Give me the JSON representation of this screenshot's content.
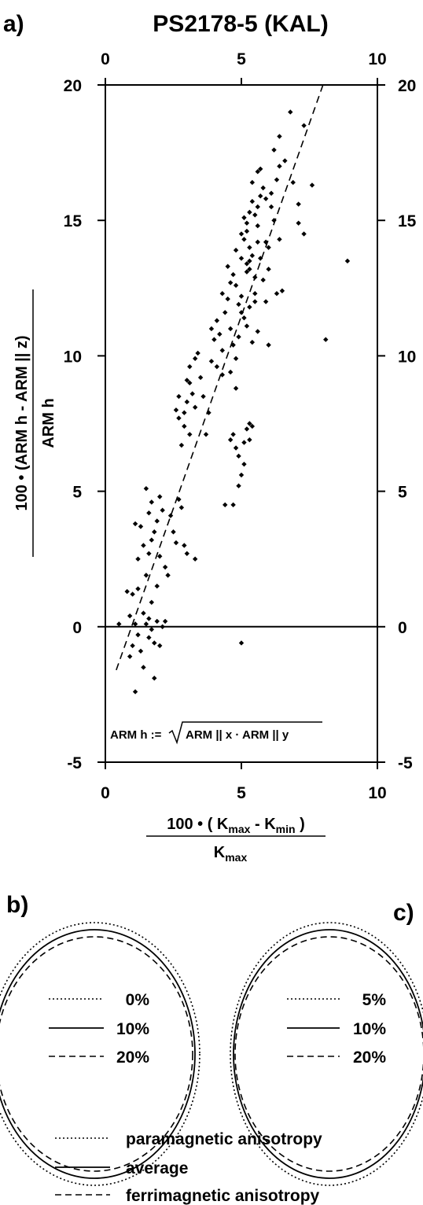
{
  "panels": {
    "a": "a)",
    "b": "b)",
    "c": "c)"
  },
  "chart_data": {
    "type": "scatter",
    "title": "PS2178-5 (KAL)",
    "xlim": [
      0,
      10
    ],
    "ylim": [
      -5,
      20
    ],
    "xticks": [
      "0",
      "5",
      "10"
    ],
    "yticks": [
      "-5",
      "0",
      "5",
      "10",
      "15",
      "20"
    ],
    "xlabel": {
      "numerator_prefix": "100 • ( K",
      "sub_max": "max",
      "minus": " - K",
      "sub_min": "min",
      "close": " )",
      "denominator": "K",
      "denominator_sub": "max"
    },
    "ylabel": {
      "numerator": "100 • (ARM h - ARM || z)",
      "denominator": "ARM h"
    },
    "annotation": {
      "left": "ARM h := ",
      "radicand": "ARM || x · ARM || y"
    },
    "zero_line": 0,
    "fit_line": {
      "x": [
        0.4,
        8.0
      ],
      "y": [
        -1.6,
        20.0
      ],
      "style": "dashed"
    },
    "points": [
      [
        0.5,
        0.1
      ],
      [
        0.8,
        1.3
      ],
      [
        0.9,
        -1.1
      ],
      [
        1.0,
        -0.7
      ],
      [
        0.9,
        0.4
      ],
      [
        1.1,
        0.1
      ],
      [
        1.2,
        -0.3
      ],
      [
        1.0,
        1.2
      ],
      [
        1.2,
        1.4
      ],
      [
        1.3,
        -0.9
      ],
      [
        1.4,
        0.5
      ],
      [
        1.5,
        0.1
      ],
      [
        1.1,
        -2.4
      ],
      [
        1.4,
        -1.5
      ],
      [
        1.6,
        -0.4
      ],
      [
        1.6,
        0.3
      ],
      [
        1.7,
        0.9
      ],
      [
        1.8,
        -0.6
      ],
      [
        1.9,
        0.2
      ],
      [
        1.8,
        -1.9
      ],
      [
        1.5,
        1.9
      ],
      [
        1.6,
        2.7
      ],
      [
        1.7,
        3.2
      ],
      [
        1.8,
        3.5
      ],
      [
        1.6,
        4.2
      ],
      [
        1.5,
        5.1
      ],
      [
        1.7,
        4.6
      ],
      [
        1.9,
        3.9
      ],
      [
        2.0,
        4.8
      ],
      [
        2.1,
        4.3
      ],
      [
        2.0,
        2.6
      ],
      [
        2.2,
        2.2
      ],
      [
        2.3,
        1.9
      ],
      [
        2.2,
        0.2
      ],
      [
        2.1,
        0.0
      ],
      [
        1.9,
        1.5
      ],
      [
        1.7,
        -0.1
      ],
      [
        2.0,
        -0.7
      ],
      [
        1.1,
        3.8
      ],
      [
        1.3,
        3.7
      ],
      [
        1.4,
        3.0
      ],
      [
        1.2,
        2.5
      ],
      [
        2.4,
        4.1
      ],
      [
        2.5,
        3.5
      ],
      [
        2.6,
        3.1
      ],
      [
        2.7,
        4.7
      ],
      [
        2.8,
        4.4
      ],
      [
        2.9,
        3.0
      ],
      [
        3.0,
        2.7
      ],
      [
        3.3,
        2.5
      ],
      [
        2.6,
        8.0
      ],
      [
        2.7,
        7.7
      ],
      [
        2.8,
        6.7
      ],
      [
        2.9,
        7.4
      ],
      [
        3.0,
        8.3
      ],
      [
        3.1,
        9.0
      ],
      [
        3.2,
        8.6
      ],
      [
        3.3,
        8.1
      ],
      [
        3.1,
        9.6
      ],
      [
        3.3,
        9.9
      ],
      [
        3.4,
        10.1
      ],
      [
        3.5,
        9.2
      ],
      [
        3.6,
        8.5
      ],
      [
        3.7,
        7.1
      ],
      [
        3.8,
        7.9
      ],
      [
        3.9,
        9.8
      ],
      [
        4.0,
        10.6
      ],
      [
        4.1,
        11.3
      ],
      [
        4.2,
        10.8
      ],
      [
        4.3,
        9.3
      ],
      [
        4.3,
        12.3
      ],
      [
        4.4,
        11.6
      ],
      [
        4.5,
        12.1
      ],
      [
        4.6,
        11.0
      ],
      [
        4.7,
        10.4
      ],
      [
        4.8,
        9.9
      ],
      [
        4.9,
        10.7
      ],
      [
        4.6,
        12.7
      ],
      [
        4.7,
        13.0
      ],
      [
        4.8,
        12.6
      ],
      [
        4.9,
        11.9
      ],
      [
        5.0,
        12.2
      ],
      [
        5.1,
        11.4
      ],
      [
        5.2,
        13.4
      ],
      [
        5.0,
        13.6
      ],
      [
        5.1,
        14.3
      ],
      [
        5.2,
        14.6
      ],
      [
        5.3,
        13.2
      ],
      [
        5.4,
        13.7
      ],
      [
        5.5,
        12.9
      ],
      [
        5.1,
        15.1
      ],
      [
        5.3,
        15.3
      ],
      [
        5.4,
        15.7
      ],
      [
        5.5,
        15.2
      ],
      [
        5.6,
        14.8
      ],
      [
        5.7,
        15.9
      ],
      [
        5.8,
        16.2
      ],
      [
        5.4,
        16.4
      ],
      [
        5.6,
        16.8
      ],
      [
        5.9,
        14.2
      ],
      [
        6.0,
        14.0
      ],
      [
        6.1,
        15.5
      ],
      [
        6.2,
        15.0
      ],
      [
        6.3,
        16.5
      ],
      [
        6.4,
        17.0
      ],
      [
        6.2,
        17.6
      ],
      [
        6.4,
        18.1
      ],
      [
        6.6,
        17.2
      ],
      [
        6.8,
        19.0
      ],
      [
        6.9,
        16.4
      ],
      [
        7.1,
        15.6
      ],
      [
        7.3,
        18.5
      ],
      [
        7.1,
        14.9
      ],
      [
        7.3,
        14.5
      ],
      [
        7.6,
        16.3
      ],
      [
        6.4,
        14.3
      ],
      [
        6.0,
        13.2
      ],
      [
        5.9,
        12.0
      ],
      [
        6.3,
        12.3
      ],
      [
        6.5,
        12.4
      ],
      [
        5.5,
        12.3
      ],
      [
        5.3,
        11.8
      ],
      [
        5.4,
        10.5
      ],
      [
        5.2,
        11.1
      ],
      [
        5.5,
        12.0
      ],
      [
        5.0,
        11.6
      ],
      [
        5.2,
        13.1
      ],
      [
        5.3,
        13.5
      ],
      [
        5.3,
        14.0
      ],
      [
        5.6,
        14.2
      ],
      [
        5.7,
        13.6
      ],
      [
        5.8,
        12.8
      ],
      [
        6.0,
        10.4
      ],
      [
        5.6,
        10.9
      ],
      [
        4.6,
        9.4
      ],
      [
        4.8,
        8.8
      ],
      [
        4.6,
        6.9
      ],
      [
        4.9,
        6.3
      ],
      [
        5.1,
        6.8
      ],
      [
        5.2,
        7.3
      ],
      [
        5.3,
        7.5
      ],
      [
        5.4,
        7.4
      ],
      [
        5.3,
        6.9
      ],
      [
        5.0,
        5.6
      ],
      [
        5.1,
        6.0
      ],
      [
        4.9,
        5.2
      ],
      [
        4.4,
        4.5
      ],
      [
        4.7,
        4.5
      ],
      [
        4.8,
        6.6
      ],
      [
        4.7,
        7.1
      ],
      [
        5.0,
        -0.6
      ],
      [
        8.1,
        10.6
      ],
      [
        8.9,
        13.5
      ],
      [
        3.0,
        9.1
      ],
      [
        2.7,
        8.5
      ],
      [
        2.9,
        7.9
      ],
      [
        3.1,
        7.1
      ],
      [
        4.1,
        9.6
      ],
      [
        4.3,
        10.2
      ],
      [
        3.9,
        11.0
      ],
      [
        4.5,
        13.3
      ],
      [
        4.8,
        13.9
      ],
      [
        5.0,
        14.5
      ],
      [
        5.2,
        14.9
      ],
      [
        5.6,
        15.5
      ],
      [
        5.9,
        15.8
      ],
      [
        6.1,
        16.0
      ],
      [
        5.7,
        16.9
      ]
    ]
  },
  "legend_b": [
    "0%",
    "10%",
    "20%"
  ],
  "legend_c": [
    "5%",
    "10%",
    "20%"
  ],
  "legend_bottom": [
    "paramagnetic anisotropy",
    "average",
    "ferrimagnetic anisotropy"
  ]
}
